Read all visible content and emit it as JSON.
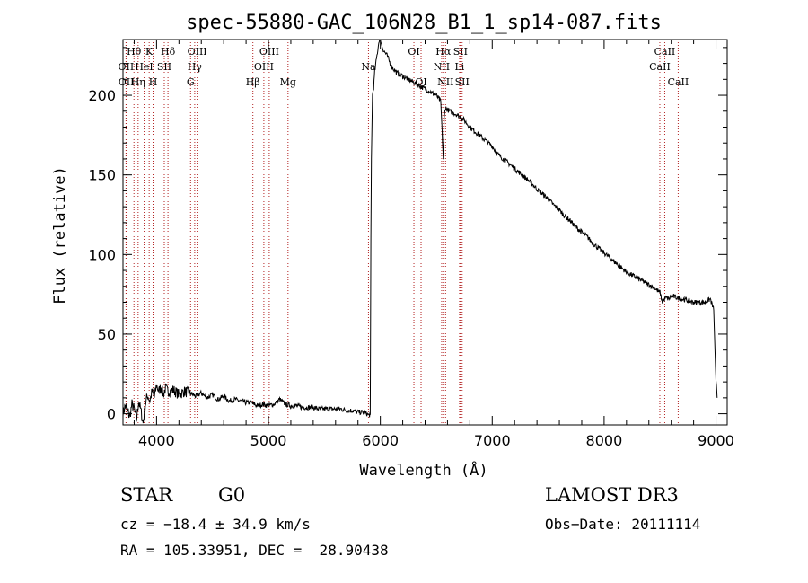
{
  "chart_data": {
    "type": "line",
    "title": "spec-55880-GAC_106N28_B1_1_sp14-087.fits",
    "xlabel": "Wavelength (Å)",
    "ylabel": "Flux (relative)",
    "xlim": [
      3700,
      9100
    ],
    "ylim": [
      -7,
      235
    ],
    "xticks": [
      4000,
      5000,
      6000,
      7000,
      8000,
      9000
    ],
    "yticks": [
      0,
      50,
      100,
      150,
      200
    ],
    "grid": false,
    "series": [
      {
        "name": "flux",
        "x": [
          3700,
          3720,
          3740,
          3760,
          3780,
          3800,
          3820,
          3840,
          3860,
          3880,
          3900,
          3920,
          3940,
          3960,
          3980,
          4000,
          4020,
          4040,
          4060,
          4080,
          4100,
          4150,
          4200,
          4250,
          4300,
          4350,
          4400,
          4450,
          4500,
          4550,
          4600,
          4650,
          4700,
          4750,
          4800,
          4850,
          4900,
          4950,
          5000,
          5050,
          5100,
          5150,
          5200,
          5250,
          5300,
          5350,
          5400,
          5450,
          5500,
          5550,
          5600,
          5650,
          5700,
          5750,
          5800,
          5850,
          5880,
          5900,
          5910,
          5915,
          5920,
          5930,
          5940,
          5950,
          5970,
          5990,
          6000,
          6010,
          6030,
          6060,
          6100,
          6150,
          6200,
          6250,
          6300,
          6350,
          6400,
          6450,
          6500,
          6540,
          6555,
          6563,
          6570,
          6580,
          6620,
          6680,
          6740,
          6800,
          6850,
          6900,
          6950,
          7000,
          7050,
          7100,
          7150,
          7200,
          7250,
          7300,
          7350,
          7400,
          7450,
          7500,
          7550,
          7600,
          7650,
          7700,
          7750,
          7800,
          7850,
          7900,
          7950,
          8000,
          8050,
          8100,
          8150,
          8200,
          8250,
          8300,
          8350,
          8400,
          8450,
          8500,
          8520,
          8550,
          8580,
          8600,
          8650,
          8700,
          8750,
          8800,
          8850,
          8900,
          8950,
          8980,
          9000,
          9010
        ],
        "y": [
          0,
          5,
          2,
          -2,
          6,
          3,
          -4,
          8,
          2,
          -6,
          6,
          12,
          8,
          14,
          10,
          18,
          14,
          17,
          12,
          16,
          14,
          15,
          12,
          14,
          13,
          11,
          13,
          10,
          12,
          9,
          11,
          8,
          9,
          8,
          7,
          7,
          5,
          6,
          5,
          6,
          9,
          6,
          5,
          5,
          4,
          4,
          4,
          3,
          3,
          3,
          3,
          3,
          2,
          2,
          1,
          1,
          0,
          -1,
          0,
          110,
          160,
          200,
          205,
          215,
          225,
          235,
          236,
          232,
          228,
          225,
          218,
          214,
          212,
          210,
          208,
          206,
          204,
          202,
          200,
          196,
          172,
          160,
          185,
          192,
          190,
          188,
          185,
          180,
          177,
          174,
          171,
          168,
          163,
          160,
          157,
          154,
          151,
          148,
          145,
          141,
          138,
          135,
          131,
          128,
          124,
          121,
          117,
          114,
          111,
          107,
          104,
          101,
          98,
          95,
          92,
          89,
          87,
          85,
          83,
          81,
          79,
          76,
          70,
          73,
          72,
          74,
          73,
          72,
          71,
          70,
          70,
          70,
          72,
          65,
          20,
          10
        ]
      }
    ],
    "emission_lines": [
      {
        "label": "Hθ",
        "wave": 3798,
        "row": 0
      },
      {
        "label": "OII",
        "wave": 3727,
        "row": 1
      },
      {
        "label": "OII",
        "wave": 3729,
        "row": 2
      },
      {
        "label": "K",
        "wave": 3934,
        "row": 0
      },
      {
        "label": "HeI",
        "wave": 3889,
        "row": 1
      },
      {
        "label": "Hη",
        "wave": 3835,
        "row": 2
      },
      {
        "label": "H",
        "wave": 3969,
        "row": 2
      },
      {
        "label": "SII",
        "wave": 4069,
        "row": 1
      },
      {
        "label": "Hδ",
        "wave": 4102,
        "row": 0
      },
      {
        "label": "OIII",
        "wave": 4363,
        "row": 0
      },
      {
        "label": "Hγ",
        "wave": 4341,
        "row": 1
      },
      {
        "label": "G",
        "wave": 4304,
        "row": 2
      },
      {
        "label": "Hβ",
        "wave": 4861,
        "row": 2
      },
      {
        "label": "OIII",
        "wave": 4959,
        "row": 1
      },
      {
        "label": "OIII",
        "wave": 5007,
        "row": 0
      },
      {
        "label": "Mg",
        "wave": 5175,
        "row": 2
      },
      {
        "label": "Na",
        "wave": 5894,
        "row": 1
      },
      {
        "label": "OI",
        "wave": 6300,
        "row": 0
      },
      {
        "label": "OI",
        "wave": 6364,
        "row": 2
      },
      {
        "label": "Hα",
        "wave": 6563,
        "row": 0
      },
      {
        "label": "NII",
        "wave": 6548,
        "row": 1
      },
      {
        "label": "NII",
        "wave": 6583,
        "row": 2
      },
      {
        "label": "SII",
        "wave": 6716,
        "row": 0
      },
      {
        "label": "Li",
        "wave": 6708,
        "row": 1
      },
      {
        "label": "SII",
        "wave": 6731,
        "row": 2
      },
      {
        "label": "CaII",
        "wave": 8542,
        "row": 0
      },
      {
        "label": "CaII",
        "wave": 8498,
        "row": 1
      },
      {
        "label": "CaII",
        "wave": 8662,
        "row": 2
      }
    ]
  },
  "info": {
    "class": "STAR",
    "subclass": "G0",
    "survey": "LAMOST DR3",
    "cz": "cz = −18.4 ± 34.9 km/s",
    "obsdate": "Obs−Date: 20111114",
    "radec": "RA = 105.33951, DEC =  28.90438"
  },
  "colors": {
    "axis": "#000000",
    "spectrum": "#000000",
    "lines": "#b22222"
  }
}
